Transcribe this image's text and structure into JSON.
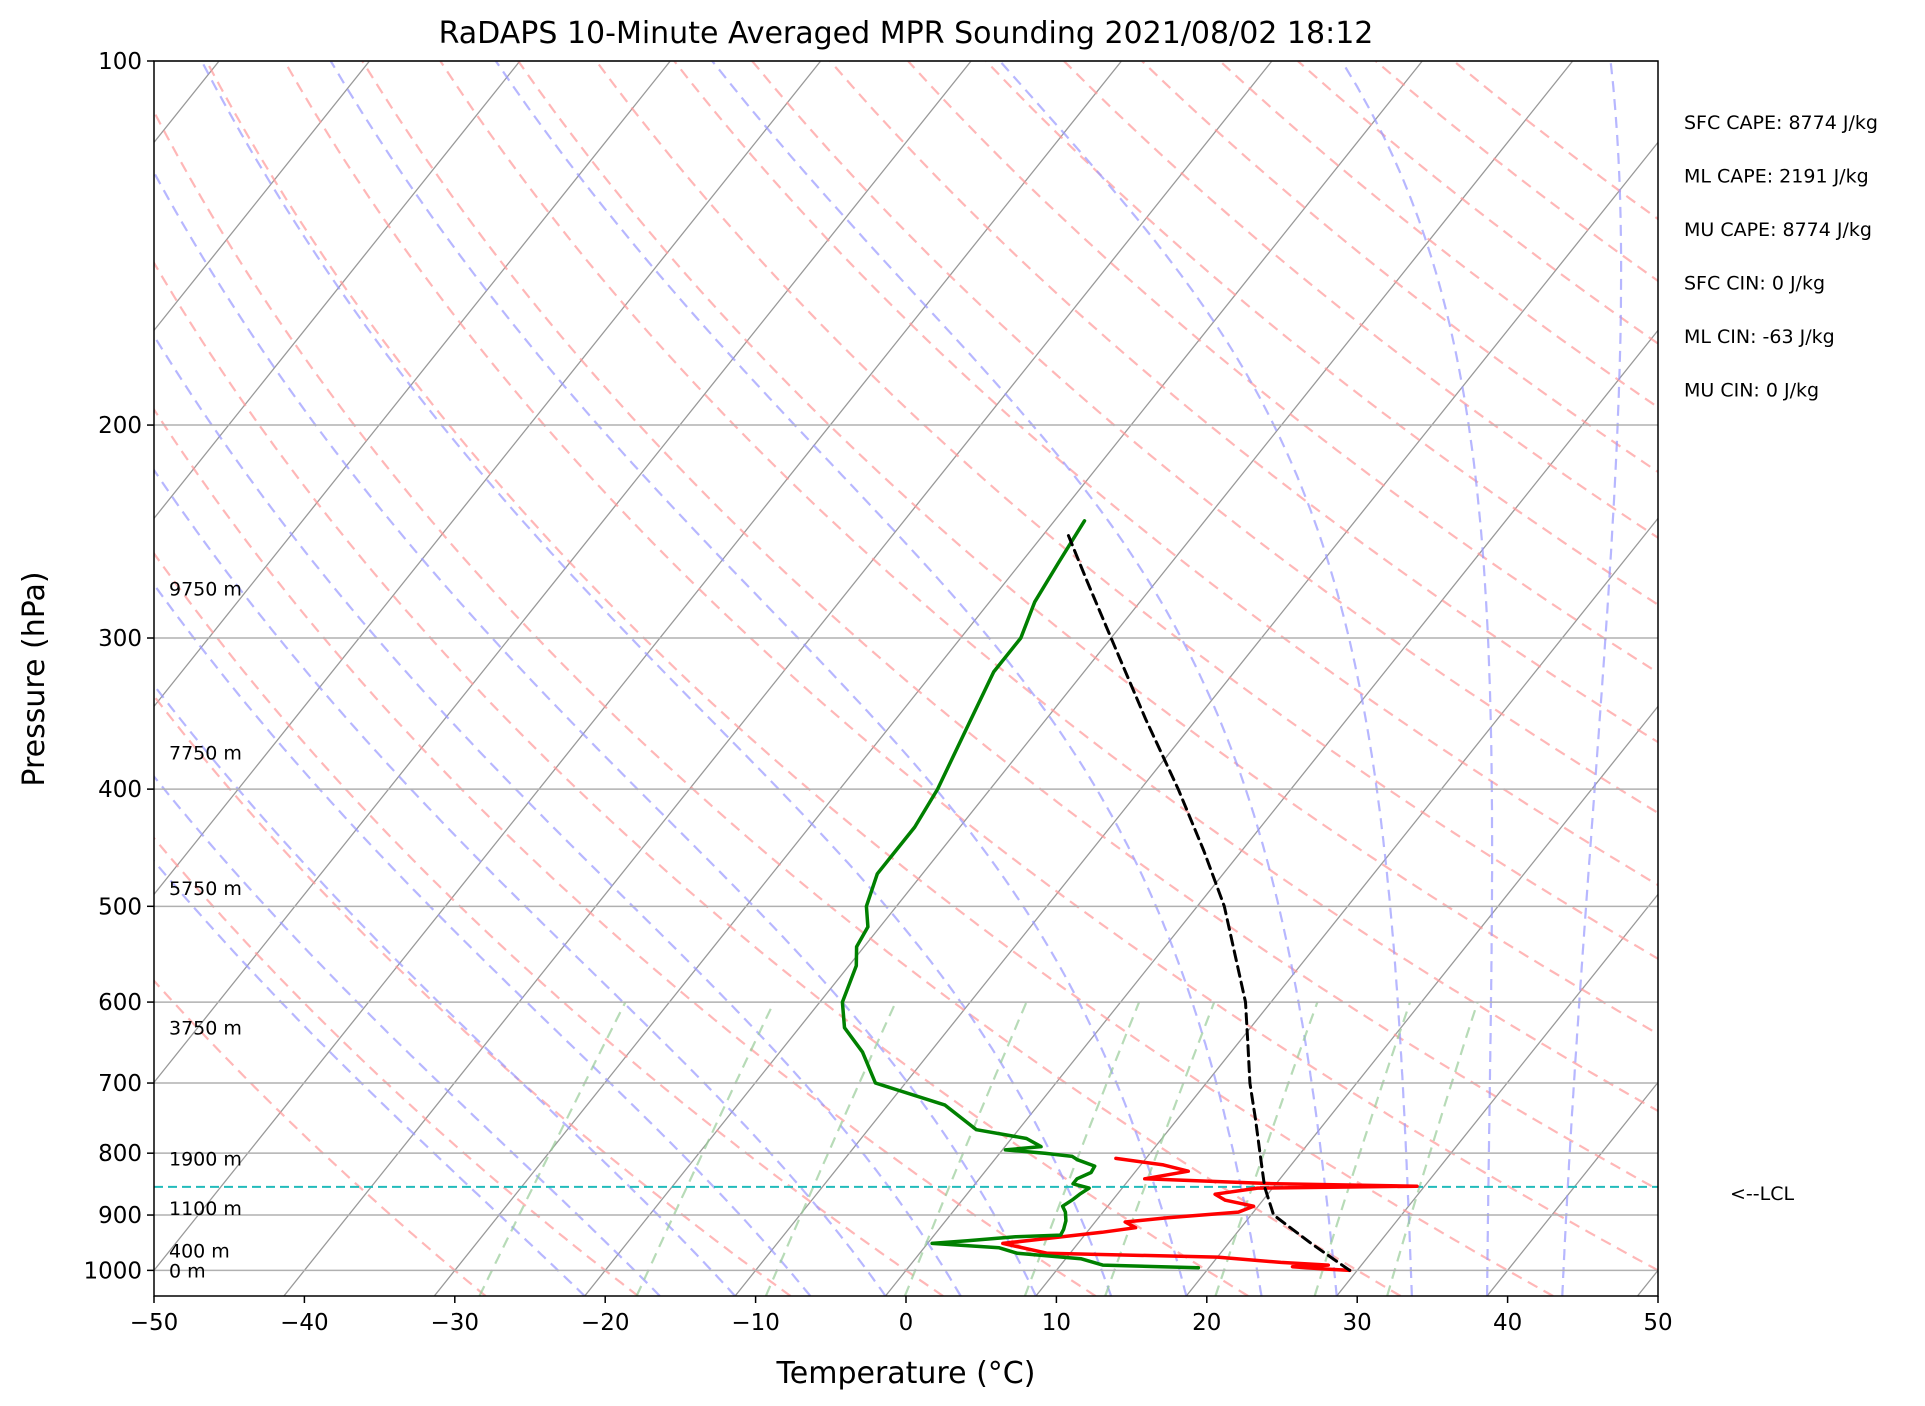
{
  "chart_data": {
    "type": "line",
    "subtype": "skew-t log-p sounding",
    "title": "RaDAPS 10-Minute Averaged MPR Sounding 2021/08/02 18:12",
    "xlabel": "Temperature (°C)",
    "ylabel": "Pressure (hPa)",
    "xlim": [
      -50,
      50
    ],
    "ylim": [
      1050,
      100
    ],
    "y_scale": "log",
    "x_ticks": [
      "−50",
      "−40",
      "−30",
      "−20",
      "−10",
      "0",
      "10",
      "20",
      "30",
      "40",
      "50"
    ],
    "y_ticks": [
      "100",
      "200",
      "300",
      "400",
      "500",
      "600",
      "700",
      "800",
      "900",
      "1000"
    ],
    "grid": true,
    "height_labels": [
      {
        "text": "9750 m",
        "p": 273
      },
      {
        "text": "7750 m",
        "p": 373
      },
      {
        "text": "5750 m",
        "p": 483
      },
      {
        "text": "3750 m",
        "p": 630
      },
      {
        "text": "1900 m",
        "p": 808
      },
      {
        "text": "1100 m",
        "p": 888
      },
      {
        "text": "400 m",
        "p": 963
      },
      {
        "text": "0 m",
        "p": 1000
      }
    ],
    "stats": [
      "SFC CAPE: 8774 J/kg",
      "ML CAPE: 2191 J/kg",
      "MU CAPE: 8774 J/kg",
      "SFC CIN: 0 J/kg",
      "ML CIN: -63 J/kg",
      "MU CIN: 0 J/kg"
    ],
    "lcl": {
      "p": 853,
      "label": "<--LCL"
    },
    "series": [
      {
        "role": "temperature",
        "color": "#ff0000",
        "points": [
          [
            1000,
            29.5
          ],
          [
            997,
            27.5
          ],
          [
            993,
            25.5
          ],
          [
            990,
            27.8
          ],
          [
            985,
            24.5
          ],
          [
            975,
            20.0
          ],
          [
            968,
            8.5
          ],
          [
            950,
            5.0
          ],
          [
            940,
            8.0
          ],
          [
            930,
            11.0
          ],
          [
            922,
            13.0
          ],
          [
            912,
            12.0
          ],
          [
            905,
            14.5
          ],
          [
            895,
            19.0
          ],
          [
            885,
            19.7
          ],
          [
            875,
            17.5
          ],
          [
            865,
            16.5
          ],
          [
            855,
            19.0
          ],
          [
            852,
            29.5
          ],
          [
            848,
            20.0
          ],
          [
            840,
            11.0
          ],
          [
            828,
            13.5
          ],
          [
            818,
            11.5
          ],
          [
            808,
            8.0
          ]
        ]
      },
      {
        "role": "dewpoint",
        "color": "#008000",
        "points": [
          [
            995,
            19.3
          ],
          [
            990,
            12.8
          ],
          [
            978,
            11.0
          ],
          [
            968,
            6.5
          ],
          [
            958,
            5.0
          ],
          [
            950,
            0.3
          ],
          [
            945,
            2.5
          ],
          [
            938,
            5.5
          ],
          [
            935,
            8.4
          ],
          [
            925,
            8.3
          ],
          [
            910,
            8.0
          ],
          [
            895,
            7.5
          ],
          [
            885,
            7.0
          ],
          [
            875,
            7.3
          ],
          [
            865,
            7.5
          ],
          [
            855,
            7.8
          ],
          [
            848,
            6.5
          ],
          [
            840,
            6.5
          ],
          [
            830,
            7.1
          ],
          [
            820,
            7.0
          ],
          [
            810,
            5.5
          ],
          [
            805,
            5.0
          ],
          [
            800,
            3.0
          ],
          [
            795,
            0.2
          ],
          [
            790,
            2.4
          ],
          [
            778,
            1.0
          ],
          [
            765,
            -2.8
          ],
          [
            730,
            -6.2
          ],
          [
            700,
            -12.0
          ],
          [
            660,
            -14.5
          ],
          [
            630,
            -17.0
          ],
          [
            600,
            -18.5
          ],
          [
            560,
            -19.5
          ],
          [
            540,
            -20.5
          ],
          [
            520,
            -20.8
          ],
          [
            500,
            -22.0
          ],
          [
            470,
            -23.0
          ],
          [
            430,
            -23.0
          ],
          [
            400,
            -23.5
          ],
          [
            350,
            -25.0
          ],
          [
            320,
            -26.0
          ],
          [
            300,
            -26.0
          ],
          [
            280,
            -27.0
          ],
          [
            260,
            -27.5
          ],
          [
            240,
            -28.0
          ]
        ]
      },
      {
        "role": "parcel",
        "color": "#000000",
        "points": [
          [
            1000,
            29.5
          ],
          [
            950,
            25.5
          ],
          [
            900,
            21.5
          ],
          [
            853,
            19.4
          ],
          [
            800,
            17.3
          ],
          [
            750,
            15.2
          ],
          [
            700,
            12.9
          ],
          [
            650,
            10.7
          ],
          [
            600,
            8.3
          ],
          [
            550,
            5.2
          ],
          [
            500,
            1.8
          ],
          [
            450,
            -2.5
          ],
          [
            400,
            -7.5
          ],
          [
            350,
            -13.4
          ],
          [
            300,
            -20.0
          ],
          [
            270,
            -24.5
          ],
          [
            245,
            -28.6
          ]
        ]
      }
    ],
    "styles": {
      "isotherm_color": "#999999",
      "dry_adiabat_color": "#ff9999",
      "moist_adiabat_color": "#9999ff",
      "mixing_ratio_color": "#99cc99",
      "lcl_line_color": "#22bbbb",
      "temperature_color": "#ff0000",
      "dewpoint_color": "#008000",
      "parcel_color": "#000000"
    }
  }
}
